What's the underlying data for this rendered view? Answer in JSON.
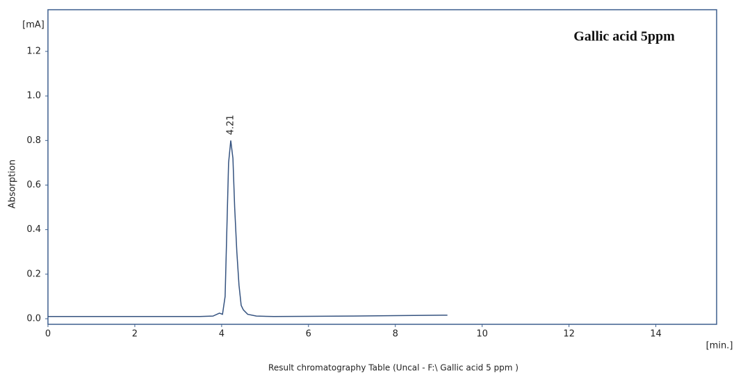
{
  "chart_data": {
    "type": "line",
    "title": "Gallic acid 5ppm",
    "x_label": "Result chromatography Table (Uncal - F:\\ Gallic acid 5 ppm )",
    "y_label": "Absorption",
    "y_unit": "[mA]",
    "x_unit": "[min.]",
    "x": [
      0,
      3.5,
      3.8,
      3.95,
      4.02,
      4.08,
      4.12,
      4.16,
      4.21,
      4.26,
      4.3,
      4.35,
      4.4,
      4.45,
      4.5,
      4.6,
      4.8,
      5.2,
      6,
      7,
      8,
      9.2
    ],
    "series": [
      {
        "color": "#34527f",
        "values": [
          0.01,
          0.01,
          0.012,
          0.025,
          0.02,
          0.1,
          0.4,
          0.7,
          0.8,
          0.72,
          0.5,
          0.3,
          0.15,
          0.06,
          0.04,
          0.02,
          0.012,
          0.01,
          0.011,
          0.012,
          0.014,
          0.016
        ]
      }
    ],
    "annotations": [
      {
        "text": "4.21",
        "x": 4.21,
        "y": 0.8
      }
    ],
    "xlim": [
      0,
      15.4
    ],
    "ylim": [
      -0.025,
      1.387
    ],
    "xticks": [
      0,
      2,
      4,
      6,
      8,
      10,
      12,
      14
    ],
    "yticks": [
      {
        "value": 0,
        "label": "0.0"
      },
      {
        "value": 0.2,
        "label": "0.2"
      },
      {
        "value": 0.4,
        "label": "0.4"
      },
      {
        "value": 0.6,
        "label": "0.6"
      },
      {
        "value": 0.8,
        "label": "0.8"
      },
      {
        "value": 1.0,
        "label": "1.0"
      },
      {
        "value": 1.2,
        "label": "1.2"
      }
    ],
    "grid": false
  }
}
